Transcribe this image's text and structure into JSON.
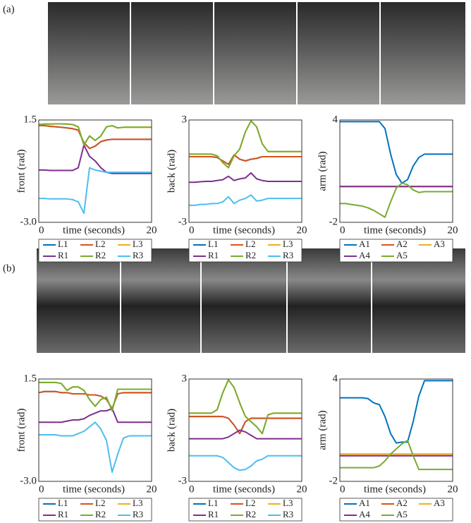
{
  "panels": [
    {
      "label": "(a)"
    },
    {
      "label": "(b)"
    }
  ],
  "chart_data": [
    {
      "type": "line",
      "ylabel": "front (rad)",
      "xlabel": "time (seconds)",
      "x": [
        0,
        1,
        2,
        3,
        4,
        5,
        6,
        7,
        8,
        9,
        10,
        11,
        12,
        13,
        14,
        15,
        16,
        17,
        18,
        19,
        20
      ],
      "xlim": [
        0,
        20
      ],
      "xticks": [
        0,
        20
      ],
      "ylim": [
        -3,
        1.5
      ],
      "yticks": [
        {
          "value": -3,
          "label": "-3.0"
        },
        1.5
      ],
      "series": [
        {
          "name": "L1",
          "color": "#0072BD",
          "values": [
            1.25,
            1.25,
            1.22,
            1.2,
            1.18,
            1.15,
            1.12,
            1.05,
            0.5,
            0.25,
            0.35,
            0.55,
            0.62,
            0.65,
            0.65,
            0.65,
            0.65,
            0.65,
            0.65,
            0.65,
            0.65
          ]
        },
        {
          "name": "L2",
          "color": "#D95319",
          "values": [
            1.25,
            1.25,
            1.22,
            1.2,
            1.18,
            1.15,
            1.12,
            1.05,
            0.5,
            0.25,
            0.35,
            0.55,
            0.62,
            0.65,
            0.65,
            0.65,
            0.65,
            0.65,
            0.65,
            0.65,
            0.65
          ]
        },
        {
          "name": "L3",
          "color": "#EDB120",
          "values": [
            1.3,
            1.32,
            1.32,
            1.33,
            1.33,
            1.32,
            1.3,
            1.2,
            0.4,
            0.8,
            0.6,
            0.8,
            1.2,
            1.25,
            1.15,
            1.18,
            1.18,
            1.18,
            1.18,
            1.18,
            1.18
          ]
        },
        {
          "name": "R1",
          "color": "#7E2F8E",
          "values": [
            -0.7,
            -0.7,
            -0.72,
            -0.72,
            -0.72,
            -0.72,
            -0.72,
            -0.6,
            0.4,
            -0.1,
            -0.3,
            -0.6,
            -0.8,
            -0.85,
            -0.85,
            -0.85,
            -0.85,
            -0.85,
            -0.85,
            -0.85,
            -0.85
          ]
        },
        {
          "name": "R2",
          "color": "#77AC30",
          "values": [
            1.3,
            1.32,
            1.32,
            1.33,
            1.33,
            1.32,
            1.3,
            1.2,
            0.4,
            0.8,
            0.6,
            0.8,
            1.2,
            1.25,
            1.15,
            1.18,
            1.18,
            1.18,
            1.18,
            1.18,
            1.18
          ]
        },
        {
          "name": "R3",
          "color": "#4DBEEE",
          "values": [
            -1.95,
            -1.95,
            -1.97,
            -1.97,
            -1.97,
            -1.97,
            -2.0,
            -2.1,
            -2.6,
            -0.6,
            -0.7,
            -0.75,
            -0.8,
            -0.8,
            -0.8,
            -0.8,
            -0.8,
            -0.8,
            -0.8,
            -0.8,
            -0.8
          ]
        }
      ]
    },
    {
      "type": "line",
      "ylabel": "back (rad)",
      "xlabel": "time (seconds)",
      "x": [
        0,
        1,
        2,
        3,
        4,
        5,
        6,
        7,
        8,
        9,
        10,
        11,
        12,
        13,
        14,
        15,
        16,
        17,
        18,
        19,
        20
      ],
      "xlim": [
        0,
        20
      ],
      "xticks": [
        0,
        20
      ],
      "ylim": [
        -3,
        3
      ],
      "yticks": [
        -3,
        3
      ],
      "series": [
        {
          "name": "L1",
          "color": "#0072BD",
          "values": [
            0.85,
            0.85,
            0.85,
            0.85,
            0.85,
            0.8,
            0.6,
            0.4,
            0.95,
            0.7,
            0.6,
            0.7,
            0.75,
            0.85,
            0.85,
            0.85,
            0.85,
            0.85,
            0.85,
            0.85,
            0.85
          ]
        },
        {
          "name": "L2",
          "color": "#D95319",
          "values": [
            0.85,
            0.85,
            0.85,
            0.85,
            0.85,
            0.8,
            0.6,
            0.4,
            0.95,
            0.7,
            0.6,
            0.7,
            0.75,
            0.85,
            0.85,
            0.85,
            0.85,
            0.85,
            0.85,
            0.85,
            0.85
          ]
        },
        {
          "name": "L3",
          "color": "#EDB120",
          "values": [
            1.0,
            1.0,
            1.0,
            1.0,
            1.0,
            0.9,
            0.5,
            0.2,
            0.9,
            1.3,
            2.3,
            2.95,
            2.6,
            1.6,
            1.15,
            1.15,
            1.15,
            1.15,
            1.15,
            1.15,
            1.15
          ]
        },
        {
          "name": "R1",
          "color": "#7E2F8E",
          "values": [
            -0.65,
            -0.65,
            -0.62,
            -0.6,
            -0.6,
            -0.55,
            -0.5,
            -0.3,
            -0.55,
            -0.45,
            -0.4,
            -0.1,
            -0.45,
            -0.55,
            -0.6,
            -0.6,
            -0.6,
            -0.6,
            -0.6,
            -0.6,
            -0.6
          ]
        },
        {
          "name": "R2",
          "color": "#77AC30",
          "values": [
            1.0,
            1.0,
            1.0,
            1.0,
            1.0,
            0.9,
            0.5,
            0.2,
            0.9,
            1.3,
            2.3,
            2.95,
            2.6,
            1.6,
            1.15,
            1.15,
            1.15,
            1.15,
            1.15,
            1.15,
            1.15
          ]
        },
        {
          "name": "R3",
          "color": "#4DBEEE",
          "values": [
            -2.0,
            -2.0,
            -1.95,
            -1.95,
            -1.9,
            -1.9,
            -1.8,
            -1.5,
            -1.9,
            -1.7,
            -1.6,
            -1.4,
            -1.75,
            -1.7,
            -1.6,
            -1.6,
            -1.6,
            -1.6,
            -1.6,
            -1.6,
            -1.6
          ]
        }
      ]
    },
    {
      "type": "line",
      "ylabel": "arm (rad)",
      "xlabel": "time (seconds)",
      "x": [
        0,
        1,
        2,
        3,
        4,
        5,
        6,
        7,
        8,
        9,
        10,
        11,
        12,
        13,
        14,
        15,
        16,
        17,
        18,
        19,
        20
      ],
      "xlim": [
        0,
        20
      ],
      "xticks": [
        0,
        20
      ],
      "ylim": [
        -2,
        4
      ],
      "yticks": [
        -2,
        4
      ],
      "series": [
        {
          "name": "A1",
          "color": "#0072BD",
          "values": [
            3.9,
            3.9,
            3.9,
            3.9,
            3.9,
            3.9,
            3.9,
            3.9,
            3.5,
            2.0,
            0.8,
            0.3,
            0.5,
            1.3,
            1.8,
            2.0,
            2.0,
            2.0,
            2.0,
            2.0,
            2.0
          ]
        },
        {
          "name": "A2",
          "color": "#D95319",
          "values": [
            0.1,
            0.1,
            0.1,
            0.1,
            0.1,
            0.1,
            0.1,
            0.1,
            0.1,
            0.1,
            0.1,
            0.1,
            0.1,
            0.1,
            0.1,
            0.1,
            0.1,
            0.1,
            0.1,
            0.1,
            0.1
          ]
        },
        {
          "name": "A3",
          "color": "#EDB120",
          "values": [
            0.1,
            0.1,
            0.1,
            0.1,
            0.1,
            0.1,
            0.1,
            0.1,
            0.1,
            0.1,
            0.1,
            0.1,
            0.1,
            0.1,
            0.1,
            0.1,
            0.1,
            0.1,
            0.1,
            0.1,
            0.1
          ]
        },
        {
          "name": "A4",
          "color": "#7E2F8E",
          "values": [
            0.1,
            0.1,
            0.1,
            0.1,
            0.1,
            0.1,
            0.1,
            0.1,
            0.1,
            0.1,
            0.1,
            0.1,
            0.1,
            0.1,
            0.1,
            0.1,
            0.1,
            0.1,
            0.1,
            0.1,
            0.1
          ]
        },
        {
          "name": "A5",
          "color": "#77AC30",
          "values": [
            -0.9,
            -0.9,
            -0.95,
            -1.0,
            -1.05,
            -1.15,
            -1.3,
            -1.5,
            -1.7,
            -0.8,
            0.0,
            0.3,
            0.2,
            -0.1,
            -0.25,
            -0.2,
            -0.2,
            -0.2,
            -0.2,
            -0.2,
            -0.2
          ]
        }
      ]
    },
    {
      "type": "line",
      "ylabel": "front (rad)",
      "xlabel": "time (seconds)",
      "x": [
        0,
        1,
        2,
        3,
        4,
        5,
        6,
        7,
        8,
        9,
        10,
        11,
        12,
        13,
        14,
        15,
        16,
        17,
        18,
        19,
        20
      ],
      "xlim": [
        0,
        20
      ],
      "xticks": [
        0,
        20
      ],
      "ylim": [
        -3,
        1.5
      ],
      "yticks": [
        {
          "value": -3,
          "label": "-3.0"
        },
        1.5
      ],
      "series": [
        {
          "name": "L1",
          "color": "#0072BD",
          "values": [
            0.9,
            0.95,
            0.95,
            0.95,
            0.9,
            0.9,
            0.85,
            0.85,
            0.85,
            0.8,
            0.8,
            0.75,
            0.6,
            0.2,
            0.85,
            0.9,
            0.9,
            0.9,
            0.9,
            0.9,
            0.9
          ]
        },
        {
          "name": "L2",
          "color": "#D95319",
          "values": [
            0.9,
            0.95,
            0.95,
            0.95,
            0.9,
            0.9,
            0.85,
            0.85,
            0.85,
            0.8,
            0.8,
            0.75,
            0.6,
            0.2,
            0.85,
            0.9,
            0.9,
            0.9,
            0.9,
            0.9,
            0.9
          ]
        },
        {
          "name": "L3",
          "color": "#EDB120",
          "values": [
            1.35,
            1.35,
            1.35,
            1.35,
            1.3,
            1.0,
            1.15,
            1.15,
            1.0,
            0.6,
            0.3,
            0.6,
            0.7,
            0.1,
            1.05,
            1.05,
            1.05,
            1.05,
            1.05,
            1.05,
            1.05
          ]
        },
        {
          "name": "R1",
          "color": "#7E2F8E",
          "values": [
            -0.4,
            -0.4,
            -0.4,
            -0.4,
            -0.4,
            -0.35,
            -0.3,
            -0.3,
            -0.25,
            -0.1,
            0.0,
            0.1,
            0.1,
            0.2,
            -0.4,
            -0.4,
            -0.4,
            -0.4,
            -0.4,
            -0.4,
            -0.4
          ]
        },
        {
          "name": "R2",
          "color": "#77AC30",
          "values": [
            1.35,
            1.35,
            1.35,
            1.35,
            1.3,
            1.0,
            1.15,
            1.15,
            1.0,
            0.6,
            0.3,
            0.6,
            0.7,
            0.1,
            1.05,
            1.05,
            1.05,
            1.05,
            1.05,
            1.05,
            1.05
          ]
        },
        {
          "name": "R3",
          "color": "#4DBEEE",
          "values": [
            -0.95,
            -0.95,
            -0.95,
            -0.95,
            -1.0,
            -1.0,
            -1.0,
            -0.9,
            -0.8,
            -0.6,
            -0.4,
            -0.7,
            -1.2,
            -2.6,
            -1.8,
            -1.1,
            -1.0,
            -1.0,
            -1.0,
            -1.0,
            -1.0
          ]
        }
      ]
    },
    {
      "type": "line",
      "ylabel": "back (rad)",
      "xlabel": "time (seconds)",
      "x": [
        0,
        1,
        2,
        3,
        4,
        5,
        6,
        7,
        8,
        9,
        10,
        11,
        12,
        13,
        14,
        15,
        16,
        17,
        18,
        19,
        20
      ],
      "xlim": [
        0,
        20
      ],
      "xticks": [
        0,
        20
      ],
      "ylim": [
        -3,
        3
      ],
      "yticks": [
        -3,
        3
      ],
      "series": [
        {
          "name": "L1",
          "color": "#0072BD",
          "values": [
            0.8,
            0.8,
            0.8,
            0.8,
            0.8,
            0.8,
            0.8,
            0.7,
            0.3,
            -0.2,
            0.5,
            0.7,
            0.7,
            0.7,
            0.7,
            0.7,
            0.7,
            0.7,
            0.7,
            0.7,
            0.7
          ]
        },
        {
          "name": "L2",
          "color": "#D95319",
          "values": [
            0.8,
            0.8,
            0.8,
            0.8,
            0.8,
            0.8,
            0.8,
            0.7,
            0.3,
            -0.2,
            0.5,
            0.7,
            0.7,
            0.7,
            0.7,
            0.7,
            0.7,
            0.7,
            0.7,
            0.7,
            0.7
          ]
        },
        {
          "name": "L3",
          "color": "#EDB120",
          "values": [
            1.0,
            1.0,
            1.0,
            1.0,
            1.0,
            1.2,
            2.2,
            2.95,
            2.5,
            1.6,
            0.8,
            0.5,
            0.2,
            -0.2,
            0.9,
            1.0,
            1.0,
            1.0,
            1.0,
            1.0,
            1.0
          ]
        },
        {
          "name": "R1",
          "color": "#7E2F8E",
          "values": [
            -0.5,
            -0.5,
            -0.5,
            -0.5,
            -0.5,
            -0.5,
            -0.5,
            -0.4,
            -0.2,
            0.0,
            -0.1,
            -0.3,
            -0.5,
            -0.5,
            -0.5,
            -0.5,
            -0.5,
            -0.5,
            -0.5,
            -0.5,
            -0.5
          ]
        },
        {
          "name": "R2",
          "color": "#77AC30",
          "values": [
            1.0,
            1.0,
            1.0,
            1.0,
            1.0,
            1.2,
            2.2,
            2.95,
            2.5,
            1.6,
            0.8,
            0.5,
            0.2,
            -0.2,
            0.9,
            1.0,
            1.0,
            1.0,
            1.0,
            1.0,
            1.0
          ]
        },
        {
          "name": "R3",
          "color": "#4DBEEE",
          "values": [
            -1.5,
            -1.5,
            -1.5,
            -1.5,
            -1.5,
            -1.5,
            -1.6,
            -1.9,
            -2.2,
            -2.35,
            -2.3,
            -2.1,
            -1.8,
            -1.7,
            -1.5,
            -1.5,
            -1.5,
            -1.5,
            -1.5,
            -1.5,
            -1.5
          ]
        }
      ]
    },
    {
      "type": "line",
      "ylabel": "arm (rad)",
      "xlabel": "time (seconds)",
      "x": [
        0,
        1,
        2,
        3,
        4,
        5,
        6,
        7,
        8,
        9,
        10,
        11,
        12,
        13,
        14,
        15,
        16,
        17,
        18,
        19,
        20
      ],
      "xlim": [
        0,
        20
      ],
      "xticks": [
        0,
        20
      ],
      "ylim": [
        -2,
        4
      ],
      "yticks": [
        -2,
        4
      ],
      "series": [
        {
          "name": "A1",
          "color": "#0072BD",
          "values": [
            2.9,
            2.9,
            2.9,
            2.9,
            2.9,
            2.85,
            2.6,
            2.5,
            1.8,
            0.8,
            0.25,
            0.3,
            0.3,
            1.5,
            3.0,
            3.9,
            3.9,
            3.9,
            3.9,
            3.9,
            3.9
          ]
        },
        {
          "name": "A2",
          "color": "#D95319",
          "values": [
            -0.4,
            -0.4,
            -0.4,
            -0.4,
            -0.4,
            -0.4,
            -0.4,
            -0.4,
            -0.4,
            -0.4,
            -0.4,
            -0.4,
            -0.4,
            -0.4,
            -0.4,
            -0.4,
            -0.4,
            -0.4,
            -0.4,
            -0.4,
            -0.4
          ]
        },
        {
          "name": "A3",
          "color": "#EDB120",
          "values": [
            -0.4,
            -0.4,
            -0.4,
            -0.4,
            -0.4,
            -0.4,
            -0.4,
            -0.4,
            -0.4,
            -0.4,
            -0.4,
            -0.4,
            -0.4,
            -0.4,
            -0.4,
            -0.4,
            -0.4,
            -0.4,
            -0.4,
            -0.4,
            -0.4
          ]
        },
        {
          "name": "A4",
          "color": "#7E2F8E",
          "values": [
            -0.5,
            -0.5,
            -0.5,
            -0.5,
            -0.5,
            -0.5,
            -0.5,
            -0.5,
            -0.5,
            -0.5,
            -0.5,
            -0.5,
            -0.5,
            -0.5,
            -0.5,
            -0.5,
            -0.5,
            -0.5,
            -0.5,
            -0.5,
            -0.5
          ]
        },
        {
          "name": "A5",
          "color": "#77AC30",
          "values": [
            -1.2,
            -1.2,
            -1.2,
            -1.2,
            -1.2,
            -1.2,
            -1.2,
            -1.1,
            -0.8,
            -0.4,
            -0.1,
            0.2,
            0.4,
            -0.5,
            -1.3,
            -1.3,
            -1.3,
            -1.3,
            -1.3,
            -1.3,
            -1.3
          ]
        }
      ]
    }
  ]
}
